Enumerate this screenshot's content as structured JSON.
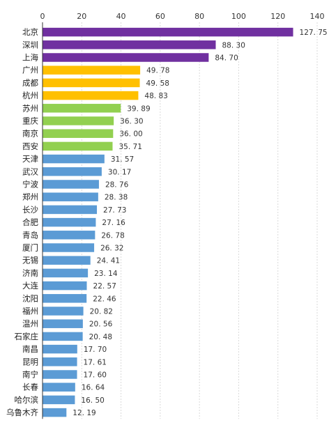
{
  "chart_data": {
    "type": "bar",
    "orientation": "horizontal",
    "categories": [
      "北京",
      "深圳",
      "上海",
      "广州",
      "成都",
      "杭州",
      "苏州",
      "重庆",
      "南京",
      "西安",
      "天津",
      "武汉",
      "宁波",
      "郑州",
      "长沙",
      "合肥",
      "青岛",
      "厦门",
      "无锡",
      "济南",
      "大连",
      "沈阳",
      "福州",
      "温州",
      "石家庄",
      "南昌",
      "昆明",
      "南宁",
      "长春",
      "哈尔滨",
      "乌鲁木齐"
    ],
    "values": [
      127.75,
      88.3,
      84.7,
      49.78,
      49.58,
      48.83,
      39.89,
      36.3,
      36.0,
      35.71,
      31.57,
      30.17,
      28.76,
      28.38,
      27.73,
      27.16,
      26.78,
      26.32,
      24.41,
      23.14,
      22.57,
      22.46,
      20.82,
      20.56,
      20.48,
      17.7,
      17.61,
      17.6,
      16.64,
      16.5,
      12.19
    ],
    "value_labels": [
      "127. 75",
      "88. 30",
      "84. 70",
      "49. 78",
      "49. 58",
      "48. 83",
      "39. 89",
      "36. 30",
      "36. 00",
      "35. 71",
      "31. 57",
      "30. 17",
      "28. 76",
      "28. 38",
      "27. 73",
      "27. 16",
      "26. 78",
      "26. 32",
      "24. 41",
      "23. 14",
      "22. 57",
      "22. 46",
      "20. 82",
      "20. 56",
      "20. 48",
      "17. 70",
      "17. 61",
      "17. 60",
      "16. 64",
      "16. 50",
      "12. 19"
    ],
    "tier_colors": [
      "#7030a0",
      "#7030a0",
      "#7030a0",
      "#ffc000",
      "#ffc000",
      "#ffc000",
      "#92d050",
      "#92d050",
      "#92d050",
      "#92d050",
      "#5b9bd5",
      "#5b9bd5",
      "#5b9bd5",
      "#5b9bd5",
      "#5b9bd5",
      "#5b9bd5",
      "#5b9bd5",
      "#5b9bd5",
      "#5b9bd5",
      "#5b9bd5",
      "#5b9bd5",
      "#5b9bd5",
      "#5b9bd5",
      "#5b9bd5",
      "#5b9bd5",
      "#5b9bd5",
      "#5b9bd5",
      "#5b9bd5",
      "#5b9bd5",
      "#5b9bd5",
      "#5b9bd5"
    ],
    "xlim": [
      0,
      140
    ],
    "xticks": [
      0,
      20,
      40,
      60,
      80,
      100,
      120,
      140
    ],
    "x_axis_position": "top",
    "grid": true,
    "legend": "none",
    "title": "",
    "xlabel": "",
    "ylabel": ""
  }
}
